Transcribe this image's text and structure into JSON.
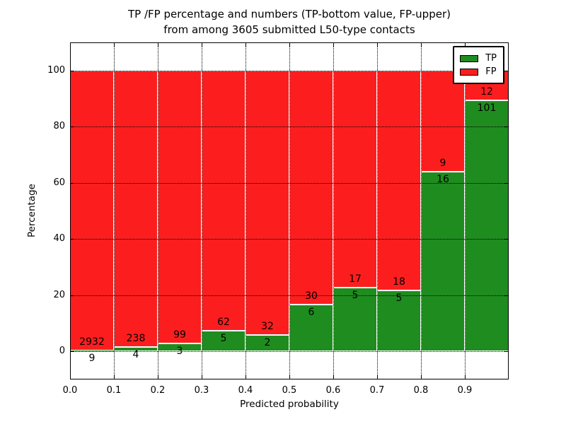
{
  "chart_data": {
    "type": "bar",
    "stacked": true,
    "units": "percent",
    "title": "TP /FP percentage and numbers (TP-bottom value, FP-upper)\nfrom among 3605 submitted L50-type contacts",
    "title_lines": [
      "TP /FP percentage and numbers (TP-bottom value, FP-upper)",
      "from among 3605 submitted L50-type contacts"
    ],
    "total_contacts": 3605,
    "xlabel": "Predicted probability",
    "ylabel": "Percentage",
    "xlim": [
      0.0,
      1.0
    ],
    "ylim": [
      -10,
      110
    ],
    "x_tick_labels": [
      "0.0",
      "0.1",
      "0.2",
      "0.3",
      "0.4",
      "0.5",
      "0.6",
      "0.7",
      "0.8",
      "0.9"
    ],
    "y_tick_values": [
      0,
      20,
      40,
      60,
      80,
      100
    ],
    "bin_edges": [
      0.0,
      0.1,
      0.2,
      0.3,
      0.4,
      0.5,
      0.6,
      0.7,
      0.8,
      0.9,
      1.0
    ],
    "series": [
      {
        "name": "TP",
        "color": "#1f8c1f",
        "position": "bottom",
        "counts": [
          9,
          4,
          3,
          5,
          2,
          6,
          5,
          5,
          16,
          101
        ]
      },
      {
        "name": "FP",
        "color": "#fc1e1e",
        "position": "top",
        "counts": [
          2932,
          238,
          99,
          62,
          32,
          30,
          17,
          18,
          9,
          12
        ]
      }
    ],
    "tp_percent_of_bin": [
      0.31,
      1.65,
      2.94,
      7.46,
      5.88,
      16.67,
      22.73,
      21.74,
      64.0,
      89.38
    ],
    "grid": {
      "style": "dotted",
      "color": "#000000",
      "on": true
    },
    "legend": {
      "position": "upper right",
      "entries": [
        {
          "label": "TP",
          "color": "#1f8c1f"
        },
        {
          "label": "FP",
          "color": "#fc1e1e"
        }
      ]
    },
    "bar_edge_color": "#ffffff",
    "background_color": "#ffffff"
  }
}
